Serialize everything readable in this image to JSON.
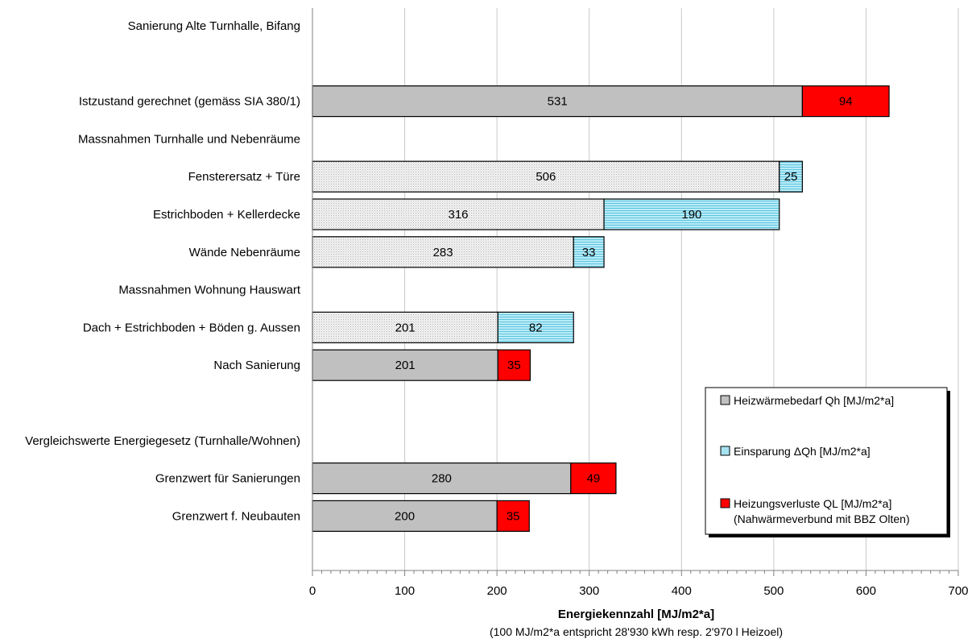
{
  "chart_data": {
    "type": "bar",
    "orientation": "horizontal",
    "stacked": true,
    "xlabel": "Energiekennzahl [MJ/m2*a]",
    "xlabel_note": "(100 MJ/m2*a entspricht 28'930 kWh resp. 2'970 l Heizoel)",
    "xlim": [
      0,
      700
    ],
    "xticks": [
      "0",
      "100",
      "200",
      "300",
      "400",
      "500",
      "600",
      "700"
    ],
    "grid": "vertical",
    "legend_placement": "bottom-right",
    "legend": [
      {
        "key": "qh",
        "label": "Heizwärmebedarf Qh [MJ/m2*a]"
      },
      {
        "key": "dqh",
        "label": "Einsparung ΔQh [MJ/m2*a]"
      },
      {
        "key": "ql",
        "label": "Heizungsverluste QL [MJ/m2*a]",
        "label2": "(Nahwärmeverbund mit BBZ Olten)"
      }
    ],
    "rows": [
      {
        "label": "Sanierung Alte Turnhalle, Bifang",
        "heading": true,
        "segments": []
      },
      {
        "label": "",
        "segments": []
      },
      {
        "label": "Istzustand gerechnet (gemäss SIA 380/1)",
        "segments": [
          {
            "key": "qh",
            "value": 531,
            "label": "531",
            "style": "gray"
          },
          {
            "key": "ql",
            "value": 94,
            "label": "94",
            "style": "red"
          }
        ]
      },
      {
        "label": "Massnahmen Turnhalle und Nebenräume",
        "heading": true,
        "segments": []
      },
      {
        "label": "Fensterersatz + Türe",
        "segments": [
          {
            "key": "qh",
            "value": 506,
            "label": "506",
            "style": "dotted"
          },
          {
            "key": "dqh",
            "value": 25,
            "label": "25",
            "style": "cyan"
          }
        ]
      },
      {
        "label": "Estrichboden + Kellerdecke",
        "segments": [
          {
            "key": "qh",
            "value": 316,
            "label": "316",
            "style": "dotted"
          },
          {
            "key": "dqh",
            "value": 190,
            "label": "190",
            "style": "cyan"
          }
        ]
      },
      {
        "label": "Wände Nebenräume",
        "segments": [
          {
            "key": "qh",
            "value": 283,
            "label": "283",
            "style": "dotted"
          },
          {
            "key": "dqh",
            "value": 33,
            "label": "33",
            "style": "cyan"
          }
        ]
      },
      {
        "label": "Massnahmen Wohnung Hauswart",
        "heading": true,
        "segments": []
      },
      {
        "label": "Dach + Estrichboden + Böden g. Aussen",
        "segments": [
          {
            "key": "qh",
            "value": 201,
            "label": "201",
            "style": "dotted"
          },
          {
            "key": "dqh",
            "value": 82,
            "label": "82",
            "style": "cyan"
          }
        ]
      },
      {
        "label": "Nach Sanierung",
        "segments": [
          {
            "key": "qh",
            "value": 201,
            "label": "201",
            "style": "gray"
          },
          {
            "key": "ql",
            "value": 35,
            "label": "35",
            "style": "red"
          }
        ]
      },
      {
        "label": "",
        "segments": []
      },
      {
        "label": "Vergleichswerte Energiegesetz (Turnhalle/Wohnen)",
        "heading": true,
        "segments": []
      },
      {
        "label": "Grenzwert für Sanierungen",
        "segments": [
          {
            "key": "qh",
            "value": 280,
            "label": "280",
            "style": "gray"
          },
          {
            "key": "ql",
            "value": 49,
            "label": "49",
            "style": "red"
          }
        ]
      },
      {
        "label": "Grenzwert f. Neubauten",
        "segments": [
          {
            "key": "qh",
            "value": 200,
            "label": "200",
            "style": "gray"
          },
          {
            "key": "ql",
            "value": 35,
            "label": "35",
            "style": "red"
          }
        ]
      }
    ],
    "colors": {
      "gray": "#c0c0c0",
      "red": "#ff0000",
      "cyan": "#a6e3f2",
      "dotted": "#f2f2f2",
      "grid": "#c8c8c8",
      "axis": "#808080"
    }
  }
}
